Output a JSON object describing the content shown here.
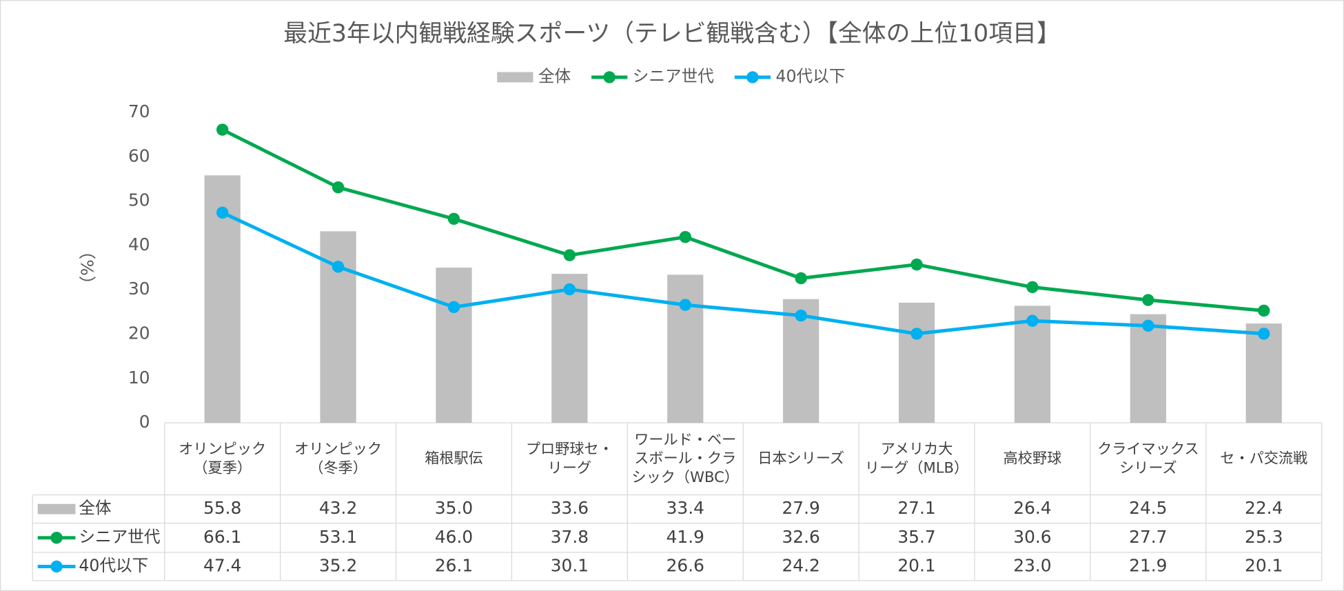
{
  "chart_data": {
    "type": "bar",
    "title": "最近3年以内観戦経験スポーツ（テレビ観戦含む）【全体の上位10項目】",
    "y_label": "（%）",
    "categories": [
      "オリンピック\n（夏季）",
      "オリンピック\n（冬季）",
      "箱根駅伝",
      "プロ野球セ・\nリーグ",
      "ワールド・ベー\nスボール・クラ\nシック（WBC）",
      "日本シリーズ",
      "アメリカ大\nリーグ（MLB）",
      "高校野球",
      "クライマックス\nシリーズ",
      "セ・パ交流戦"
    ],
    "series": [
      {
        "name": "全体",
        "type": "bar",
        "color": "#bfbfbf",
        "values": [
          55.8,
          43.2,
          35.0,
          33.6,
          33.4,
          27.9,
          27.1,
          26.4,
          24.5,
          22.4
        ],
        "value_labels": [
          "55.8",
          "43.2",
          "35.0",
          "33.6",
          "33.4",
          "27.9",
          "27.1",
          "26.4",
          "24.5",
          "22.4"
        ]
      },
      {
        "name": "シニア世代",
        "type": "line",
        "color": "#00a84f",
        "values": [
          66.1,
          53.1,
          46.0,
          37.8,
          41.9,
          32.6,
          35.7,
          30.6,
          27.7,
          25.3
        ],
        "value_labels": [
          "66.1",
          "53.1",
          "46.0",
          "37.8",
          "41.9",
          "32.6",
          "35.7",
          "30.6",
          "27.7",
          "25.3"
        ]
      },
      {
        "name": "40代以下",
        "type": "line",
        "color": "#00b0f0",
        "values": [
          47.4,
          35.2,
          26.1,
          30.1,
          26.6,
          24.2,
          20.1,
          23.0,
          21.9,
          20.1
        ],
        "value_labels": [
          "47.4",
          "35.2",
          "26.1",
          "30.1",
          "26.6",
          "24.2",
          "20.1",
          "23.0",
          "21.9",
          "20.1"
        ]
      }
    ],
    "ylim": [
      0,
      70
    ],
    "yticks": [
      0,
      10,
      20,
      30,
      40,
      50,
      60,
      70
    ],
    "grid": false,
    "legend": "top",
    "data_table": true
  }
}
